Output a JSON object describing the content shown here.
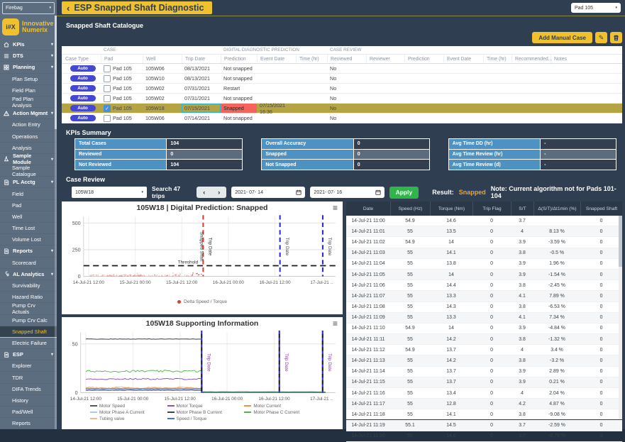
{
  "top": {
    "org_select": "Firebag",
    "back_icon": "‹",
    "title": "ESP Snapped Shaft Diagnostic",
    "pad_select": "Pad 105",
    "logo_abbr": "i#X",
    "logo_line1": "Innovative",
    "logo_line2": "Numerix"
  },
  "colors": {
    "accent_yellow": "#f0c12f",
    "apply_green": "#2fb54a",
    "snapped_red": "#f4645c",
    "selected_row_olive": "#b5a443",
    "auto_badge_blue": "#4447cf",
    "kpi_label_blue": "#4d92c2",
    "result_orange": "#e8a33d",
    "sidebar_gray": "#5d6d80",
    "bg_navy": "#2f3e50"
  },
  "sidebar": {
    "items": [
      {
        "label": "KPIs",
        "type": "group",
        "icon": "home"
      },
      {
        "label": "DTS",
        "type": "group",
        "icon": "list"
      },
      {
        "label": "Planning",
        "type": "group",
        "icon": "grid"
      },
      {
        "label": "Plan Setup",
        "type": "item"
      },
      {
        "label": "Field Plan",
        "type": "item"
      },
      {
        "label": "Pad Plan Analysis",
        "type": "item"
      },
      {
        "label": "Action Mgmnt",
        "type": "group",
        "icon": "warning"
      },
      {
        "label": "Action Entry",
        "type": "item"
      },
      {
        "label": "Operations",
        "type": "item"
      },
      {
        "label": "Analysis",
        "type": "item"
      },
      {
        "label": "Sample Module",
        "type": "group",
        "icon": "flask"
      },
      {
        "label": "Sample Catalogue",
        "type": "item"
      },
      {
        "label": "PL Acctg",
        "type": "group",
        "icon": "doc"
      },
      {
        "label": "Field",
        "type": "item"
      },
      {
        "label": "Pad",
        "type": "item"
      },
      {
        "label": "Well",
        "type": "item"
      },
      {
        "label": "Time Lost",
        "type": "item"
      },
      {
        "label": "Volume Lost",
        "type": "item"
      },
      {
        "label": "Reports",
        "type": "group",
        "icon": "doc"
      },
      {
        "label": "Scorecard",
        "type": "item"
      },
      {
        "label": "AL Analytics",
        "type": "group",
        "icon": "wrench"
      },
      {
        "label": "Survivability",
        "type": "item"
      },
      {
        "label": "Hazard Ratio",
        "type": "item"
      },
      {
        "label": "Pump Crv Actuals",
        "type": "item"
      },
      {
        "label": "Pump Crv Calc",
        "type": "item"
      },
      {
        "label": "Snapped Shaft",
        "type": "item",
        "active": true
      },
      {
        "label": "Electric Failure",
        "type": "item"
      },
      {
        "label": "ESP",
        "type": "group",
        "icon": "doc"
      },
      {
        "label": "Explorer",
        "type": "item"
      },
      {
        "label": "TDR",
        "type": "item"
      },
      {
        "label": "DIFA Trends",
        "type": "item"
      },
      {
        "label": "History",
        "type": "item"
      },
      {
        "label": "Pad/Well",
        "type": "item"
      },
      {
        "label": "Reports",
        "type": "item"
      }
    ]
  },
  "catalogue": {
    "section_title": "Snapped Shaft Catalogue",
    "add_button": "Add Manual Case",
    "group_headers": [
      "CASE",
      "DIGITAL DIAGNOSTIC PREDICTION",
      "CASE REVIEW"
    ],
    "columns": [
      "Case Type",
      "Pad",
      "Well",
      "Trip Date",
      "Prediction",
      "Event Date",
      "Time (hr)",
      "Reviewed",
      "Reviewer",
      "Prediction",
      "Event Date",
      "Time (hr)",
      "Recommended...",
      "Notes"
    ],
    "rows": [
      {
        "case_type": "Auto",
        "checked": false,
        "pad": "Pad 105",
        "well": "105W06",
        "trip_date": "08/13/2021",
        "dd_prediction": "Not snapped",
        "dd_event_date": "",
        "dd_time": "",
        "reviewed": "No",
        "selected": false
      },
      {
        "case_type": "Auto",
        "checked": false,
        "pad": "Pad 105",
        "well": "105W10",
        "trip_date": "08/13/2021",
        "dd_prediction": "Not snapped",
        "dd_event_date": "",
        "dd_time": "",
        "reviewed": "No",
        "selected": false
      },
      {
        "case_type": "Auto",
        "checked": false,
        "pad": "Pad 105",
        "well": "105W02",
        "trip_date": "07/31/2021",
        "dd_prediction": "Restart",
        "dd_event_date": "",
        "dd_time": "",
        "reviewed": "No",
        "selected": false
      },
      {
        "case_type": "Auto",
        "checked": false,
        "pad": "Pad 105",
        "well": "105W02",
        "trip_date": "07/31/2021",
        "dd_prediction": "Not snapped",
        "dd_event_date": "",
        "dd_time": "",
        "reviewed": "No",
        "selected": false
      },
      {
        "case_type": "Auto",
        "checked": true,
        "pad": "Pad 105",
        "well": "105W18",
        "trip_date": "07/15/2021",
        "dd_prediction": "Snapped",
        "dd_event_date": "07/15/2021 16:36",
        "dd_time": "",
        "reviewed": "No",
        "selected": true
      },
      {
        "case_type": "Auto",
        "checked": false,
        "pad": "Pad 105",
        "well": "105W06",
        "trip_date": "07/14/2021",
        "dd_prediction": "Not snapped",
        "dd_event_date": "",
        "dd_time": "",
        "reviewed": "No",
        "selected": false
      }
    ]
  },
  "kpis": {
    "section_title": "KPIs Summary",
    "tables": [
      {
        "rows": [
          [
            "Total Cases",
            "104"
          ],
          [
            "Reviewed",
            "0"
          ],
          [
            "Not Reviewed",
            "104"
          ]
        ]
      },
      {
        "rows": [
          [
            "Overall Accuracy",
            "0"
          ],
          [
            "Snapped",
            "0"
          ],
          [
            "Not Snapped",
            "0"
          ]
        ]
      },
      {
        "rows": [
          [
            "Avg Time DD (hr)",
            "-"
          ],
          [
            "Avg Time Review (hr)",
            "-"
          ],
          [
            "Avg Time Review (d)",
            "-"
          ]
        ]
      }
    ]
  },
  "case_review": {
    "section_title": "Case Review",
    "well_select": "105W18",
    "search_label": "Search 47 trips",
    "prev_icon": "‹",
    "next_icon": "›",
    "date_from": "2021- 07- 14",
    "date_to": "2021- 07- 16",
    "apply_label": "Apply",
    "result_label": "Result:",
    "result_value": "Snapped",
    "note": "Note: Current algorithm not for Pads 101-104"
  },
  "chart_data": [
    {
      "type": "scatter",
      "title": "105W18 | Digital Prediction: Snapped",
      "x_ticks": [
        "14-Jul-21 12:00",
        "15-Jul-21 00:00",
        "15-Jul-21 12:00",
        "16-Jul-21 00:00",
        "16-Jul-21 12:00",
        "17-Jul-21 .."
      ],
      "x_tick_pct": [
        2,
        20.5,
        39,
        57.5,
        76,
        94.5
      ],
      "y_ticks": [
        0,
        250,
        500
      ],
      "ylim": [
        0,
        560
      ],
      "grid": true,
      "series": [
        {
          "name": "Delta Speed / Torque",
          "color": "#d84339",
          "approx_level": 8,
          "x_pct_range": [
            2.5,
            47.5
          ]
        }
      ],
      "threshold": {
        "value": 100,
        "label": "Threshold"
      },
      "event_lines": [
        {
          "labels": [
            "Snapped Shaft",
            "Trip Date"
          ],
          "x_pct": 47.5,
          "color": "#e03c31",
          "time": "07/15/2021 16:36"
        },
        {
          "labels": [
            "Trip Date"
          ],
          "x_pct": 78,
          "color": "#2a2ad6"
        },
        {
          "labels": [
            "Trip Date"
          ],
          "x_pct": 95,
          "color": "#2a2ad6"
        }
      ],
      "legend": [
        {
          "label": "Delta Speed / Torque",
          "color": "#d84339"
        }
      ],
      "legend_position": "bottom"
    },
    {
      "type": "line",
      "title": "105W18 Supporting Information",
      "x_ticks": [
        "14-Jul-21 12:00",
        "15-Jul-21 00:00",
        "15-Jul-21 12:00",
        "16-Jul-21 00:00",
        "16-Jul-21 12:00",
        "17-Jul-21 .."
      ],
      "x_tick_pct": [
        2,
        20.5,
        39,
        57.5,
        76,
        94.5
      ],
      "y_ticks": [
        0,
        50
      ],
      "ylim": [
        0,
        62
      ],
      "grid": true,
      "trip_pct": [
        47.5,
        78,
        95
      ],
      "trip_label": "Trip Date",
      "series": [
        {
          "name": "Motor Speed",
          "color": "#4d5760",
          "pre": 55,
          "post": 0,
          "amp": 0.25
        },
        {
          "name": "Motor Torque",
          "color": "#8a4fc0",
          "pre": 14,
          "post": 0,
          "amp": 0.7
        },
        {
          "name": "Motor Current",
          "color": "#e8923d",
          "pre": 4.5,
          "post": 0,
          "amp": 0.4
        },
        {
          "name": "Motor Phase A Current",
          "color": "#a5cdea",
          "pre": 2.8,
          "post": 0,
          "amp": 0.25
        },
        {
          "name": "Motor Phase B Current",
          "color": "#3f444a",
          "pre": 2.5,
          "post": 0,
          "amp": 0.2
        },
        {
          "name": "Motor Phase C Current",
          "color": "#58b14f",
          "pre": 22,
          "post": 1,
          "amp": 1.0
        },
        {
          "name": "Tubing valve",
          "color": "#f2bd85",
          "pre": 5,
          "post": 0,
          "amp": 0.8
        },
        {
          "name": "Speed / Torque",
          "color": "#4a6fd4",
          "pre": 3.9,
          "post": 0,
          "amp": 0.15
        }
      ],
      "legend_position": "bottom"
    }
  ],
  "trip_table": {
    "columns": [
      "Date",
      "Speed (Hz)",
      "Torque (Nm)",
      "Trip Flag",
      "S/T",
      "Δ(S/T)/Δt1min (%)",
      "Snapped Shaft"
    ],
    "rows": [
      [
        "14-Jul-21 11:00",
        "54.9",
        "14.6",
        "0",
        "3.7",
        "",
        "0"
      ],
      [
        "14-Jul-21 11:01",
        "55",
        "13.5",
        "0",
        "4",
        "8.13 %",
        "0"
      ],
      [
        "14-Jul-21 11:02",
        "54.9",
        "14",
        "0",
        "3.9",
        "-3.59 %",
        "0"
      ],
      [
        "14-Jul-21 11:03",
        "55",
        "14.1",
        "0",
        "3.8",
        "-0.5 %",
        "0"
      ],
      [
        "14-Jul-21 11:04",
        "55",
        "13.8",
        "0",
        "3.9",
        "1.96 %",
        "0"
      ],
      [
        "14-Jul-21 11:05",
        "55",
        "14",
        "0",
        "3.9",
        "-1.54 %",
        "0"
      ],
      [
        "14-Jul-21 11:06",
        "55",
        "14.4",
        "0",
        "3.8",
        "-2.45 %",
        "0"
      ],
      [
        "14-Jul-21 11:07",
        "55",
        "13.3",
        "0",
        "4.1",
        "7.89 %",
        "0"
      ],
      [
        "14-Jul-21 11:08",
        "55",
        "14.3",
        "0",
        "3.8",
        "-6.53 %",
        "0"
      ],
      [
        "14-Jul-21 11:09",
        "55",
        "13.3",
        "0",
        "4.1",
        "7.34 %",
        "0"
      ],
      [
        "14-Jul-21 11:10",
        "54.9",
        "14",
        "0",
        "3.9",
        "-4.84 %",
        "0"
      ],
      [
        "14-Jul-21 11:11",
        "55",
        "14.2",
        "0",
        "3.8",
        "-1.32 %",
        "0"
      ],
      [
        "14-Jul-21 11:12",
        "54.9",
        "13.7",
        "0",
        "4",
        "3.4 %",
        "0"
      ],
      [
        "14-Jul-21 11:13",
        "55",
        "14.2",
        "0",
        "3.8",
        "-3.2 %",
        "0"
      ],
      [
        "14-Jul-21 11:14",
        "55",
        "13.7",
        "0",
        "3.9",
        "2.89 %",
        "0"
      ],
      [
        "14-Jul-21 11:15",
        "55",
        "13.7",
        "0",
        "3.9",
        "0.21 %",
        "0"
      ],
      [
        "14-Jul-21 11:16",
        "55",
        "13.4",
        "0",
        "4",
        "2.04 %",
        "0"
      ],
      [
        "14-Jul-21 11:17",
        "55",
        "12.8",
        "0",
        "4.2",
        "4.87 %",
        "0"
      ],
      [
        "14-Jul-21 11:18",
        "55",
        "14.1",
        "0",
        "3.8",
        "-9.08 %",
        "0"
      ],
      [
        "14-Jul-21 11:19",
        "55.1",
        "14.5",
        "0",
        "3.7",
        "-2.59 %",
        "0"
      ],
      [
        "14-Jul-21 11:20",
        "55",
        "14.6",
        "0",
        "3.7",
        "-0.79 %",
        "0"
      ]
    ]
  }
}
